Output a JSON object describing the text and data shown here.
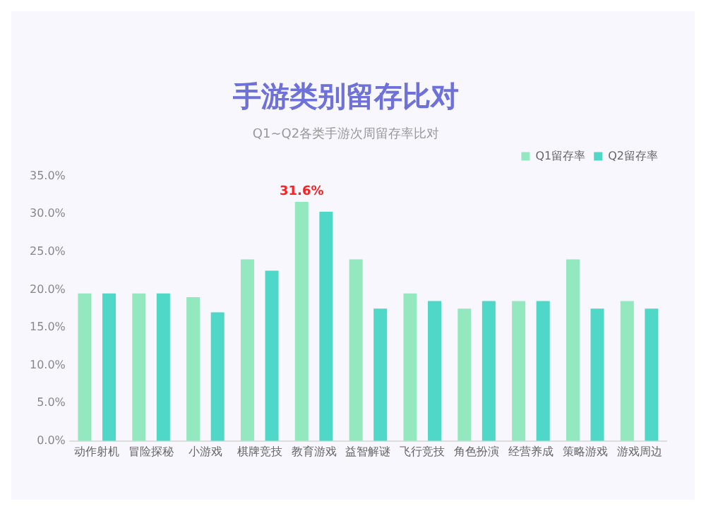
{
  "chart_data": {
    "type": "bar",
    "title": "手游类别留存比对",
    "subtitle": "Q1~Q2各类手游次周留存率比对",
    "categories": [
      "动作射机",
      "冒险探秘",
      "小游戏",
      "棋牌竞技",
      "教育游戏",
      "益智解谜",
      "飞行竞技",
      "角色扮演",
      "经营养成",
      "策略游戏",
      "游戏周边"
    ],
    "series": [
      {
        "name": "Q1留存率",
        "color": "#94e8c0",
        "values": [
          19.5,
          19.5,
          19,
          24,
          31.6,
          24,
          19.5,
          17.5,
          18.5,
          24,
          18.5
        ],
        "value_labels": [
          null,
          null,
          null,
          null,
          "31.6%",
          null,
          null,
          null,
          null,
          null,
          null
        ]
      },
      {
        "name": "Q2留存率",
        "color": "#4fd8c8",
        "values": [
          19.5,
          19.5,
          17,
          22.5,
          30.3,
          17.5,
          18.5,
          18.5,
          18.5,
          17.5,
          17.5
        ]
      }
    ],
    "ylim": [
      0,
      35
    ],
    "yticks": [
      {
        "value": 0,
        "label": "0.0%"
      },
      {
        "value": 5,
        "label": "5.0%"
      },
      {
        "value": 10,
        "label": "10.0%"
      },
      {
        "value": 15,
        "label": "15.0%"
      },
      {
        "value": 20,
        "label": "20.0%"
      },
      {
        "value": 25,
        "label": "25.0%"
      },
      {
        "value": 30,
        "label": "30.0%"
      },
      {
        "value": 35,
        "label": "35.0%"
      }
    ],
    "grid": false,
    "legend": "top right"
  }
}
